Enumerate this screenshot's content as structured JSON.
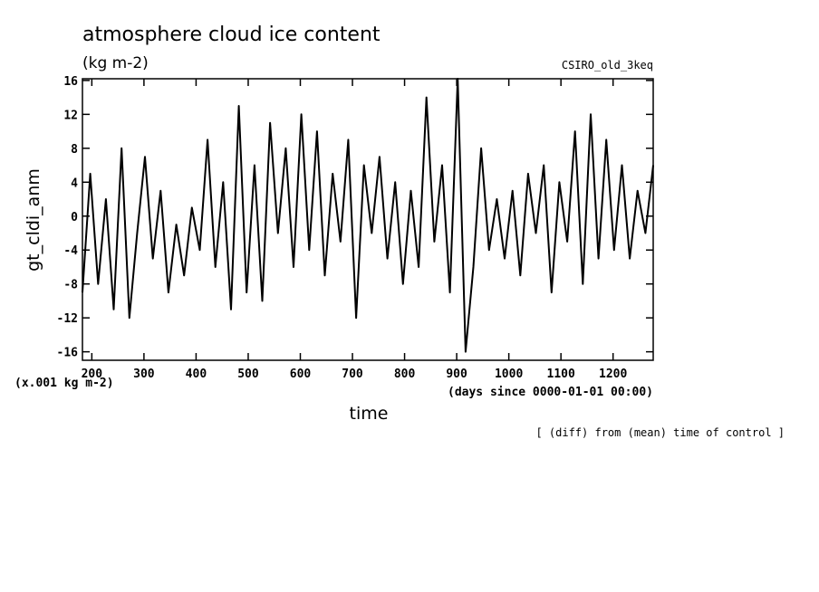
{
  "header": {
    "title": "atmosphere cloud ice content",
    "units": "(kg m-2)",
    "model": "CSIRO_old_3keq"
  },
  "axes": {
    "y_scale_note": "(x.001 kg m-2)",
    "x_units_note": "(days since 0000-01-01 00:00)",
    "footer_note": "[ (diff) from (mean) time of control ]"
  },
  "chart_data": {
    "type": "line",
    "title": "atmosphere cloud ice content",
    "xlabel": "time",
    "ylabel": "gt_cldi_anm",
    "xlim": [
      182,
      1277
    ],
    "ylim": [
      -17,
      16.2
    ],
    "x_ticks": [
      200,
      300,
      400,
      500,
      600,
      700,
      800,
      900,
      1000,
      1100,
      1200
    ],
    "y_ticks": [
      -16,
      -12,
      -8,
      -4,
      0,
      4,
      8,
      12,
      16
    ],
    "grid": false,
    "series": [
      {
        "name": "",
        "color": "#000000",
        "x": [
          182,
          197,
          212,
          227,
          242,
          257,
          272,
          287,
          302,
          317,
          332,
          347,
          362,
          377,
          392,
          407,
          422,
          437,
          452,
          467,
          482,
          497,
          512,
          527,
          542,
          557,
          572,
          587,
          602,
          617,
          632,
          647,
          662,
          677,
          692,
          707,
          722,
          737,
          752,
          767,
          782,
          797,
          812,
          827,
          842,
          857,
          872,
          887,
          902,
          917,
          932,
          947,
          962,
          977,
          992,
          1007,
          1022,
          1037,
          1052,
          1067,
          1082,
          1097,
          1112,
          1127,
          1142,
          1157,
          1172,
          1187,
          1202,
          1217,
          1232,
          1247,
          1262,
          1277
        ],
        "values": [
          -9,
          5,
          -8,
          2,
          -11,
          8,
          -12,
          -2,
          7,
          -5,
          3,
          -9,
          -1,
          -7,
          1,
          -4,
          9,
          -6,
          4,
          -11,
          13,
          -9,
          6,
          -10,
          11,
          -2,
          8,
          -6,
          12,
          -4,
          10,
          -7,
          5,
          -3,
          9,
          -12,
          6,
          -2,
          7,
          -5,
          4,
          -8,
          3,
          -6,
          14,
          -3,
          6,
          -9,
          17,
          -16,
          -6,
          8,
          -4,
          2,
          -5,
          3,
          -7,
          5,
          -2,
          6,
          -9,
          4,
          -3,
          10,
          -8,
          12,
          -5,
          9,
          -4,
          6,
          -5,
          3,
          -2,
          6
        ]
      }
    ]
  }
}
